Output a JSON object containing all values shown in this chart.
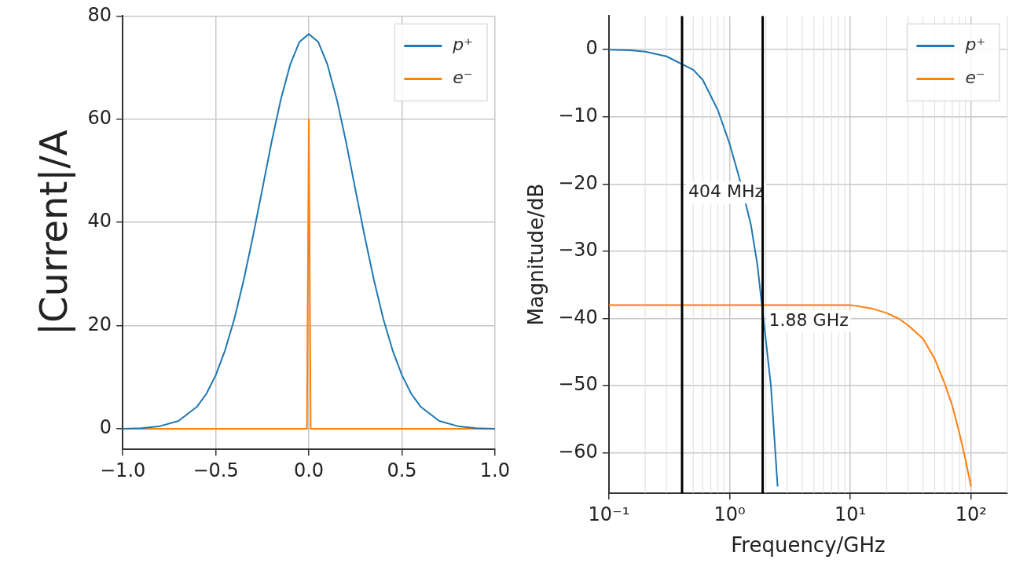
{
  "chart_data": [
    {
      "type": "line",
      "ylabel": "|Current|/A",
      "xlim": [
        -1,
        1
      ],
      "ylim": [
        -4,
        80
      ],
      "xticks": [
        {
          "value": -1,
          "label": "−1.0"
        },
        {
          "value": -0.5,
          "label": "−0.5"
        },
        {
          "value": 0,
          "label": "0.0"
        },
        {
          "value": 0.5,
          "label": "0.5"
        },
        {
          "value": 1,
          "label": "1.0"
        }
      ],
      "yticks": [
        0,
        20,
        40,
        60,
        80
      ],
      "grid": true,
      "legend": "top right",
      "series": [
        {
          "name": "p⁺",
          "color": "#1f77b4",
          "x": [
            -1,
            -0.9,
            -0.8,
            -0.7,
            -0.6,
            -0.55,
            -0.5,
            -0.45,
            -0.4,
            -0.35,
            -0.3,
            -0.25,
            -0.2,
            -0.15,
            -0.1,
            -0.05,
            0,
            0.05,
            0.1,
            0.15,
            0.2,
            0.25,
            0.3,
            0.35,
            0.4,
            0.45,
            0.5,
            0.55,
            0.6,
            0.7,
            0.8,
            0.9,
            1
          ],
          "values": [
            0,
            0.1,
            0.5,
            1.5,
            4.3,
            6.8,
            10.4,
            15.2,
            21.3,
            28.8,
            37.3,
            46.4,
            55.6,
            63.9,
            70.6,
            75.0,
            76.5,
            75.0,
            70.6,
            63.9,
            55.6,
            46.4,
            37.3,
            28.8,
            21.3,
            15.2,
            10.4,
            6.8,
            4.3,
            1.5,
            0.5,
            0.1,
            0
          ]
        },
        {
          "name": "e⁻",
          "color": "#ff7f0e",
          "x": [
            -1,
            -0.01,
            0,
            0.01,
            1
          ],
          "values": [
            0,
            0,
            60,
            0,
            0
          ]
        }
      ]
    },
    {
      "type": "line",
      "xlabel": "Frequency/GHz",
      "ylabel": "Magnitude/dB",
      "log": "x",
      "xlim": [
        0.1,
        200
      ],
      "ylim": [
        -66,
        5
      ],
      "xticks": [
        {
          "value": 0.1,
          "label": "10⁻¹"
        },
        {
          "value": 1,
          "label": "10⁰"
        },
        {
          "value": 10,
          "label": "10¹"
        },
        {
          "value": 100,
          "label": "10²"
        }
      ],
      "yticks": [
        {
          "value": 0,
          "label": "0"
        },
        {
          "value": -10,
          "label": "−10"
        },
        {
          "value": -20,
          "label": "−20"
        },
        {
          "value": -30,
          "label": "−30"
        },
        {
          "value": -40,
          "label": "−40"
        },
        {
          "value": -50,
          "label": "−50"
        },
        {
          "value": -60,
          "label": "−60"
        }
      ],
      "grid": true,
      "legend": "top right",
      "ref_lines": [
        {
          "axis": "x",
          "value": 0.404,
          "label": "404 MHz",
          "color": "#000000"
        },
        {
          "axis": "x",
          "value": 1.88,
          "label": "1.88 GHz",
          "color": "#000000"
        }
      ],
      "series": [
        {
          "name": "p⁺",
          "color": "#1f77b4",
          "x": [
            0.1,
            0.15,
            0.2,
            0.3,
            0.5,
            0.6,
            0.8,
            1,
            1.2,
            1.5,
            1.7,
            2.2,
            2.5
          ],
          "values": [
            0,
            -0.1,
            -0.3,
            -1,
            -3,
            -4.5,
            -9,
            -14,
            -19,
            -26,
            -32,
            -50,
            -65
          ]
        },
        {
          "name": "e⁻",
          "color": "#ff7f0e",
          "x": [
            0.1,
            1,
            5,
            10,
            15,
            20,
            25,
            30,
            40,
            50,
            60,
            70,
            80,
            90,
            100
          ],
          "values": [
            -38,
            -38,
            -38,
            -38,
            -38.5,
            -39.2,
            -40,
            -41,
            -43,
            -46,
            -49.5,
            -53,
            -57,
            -61,
            -65
          ]
        }
      ]
    }
  ]
}
